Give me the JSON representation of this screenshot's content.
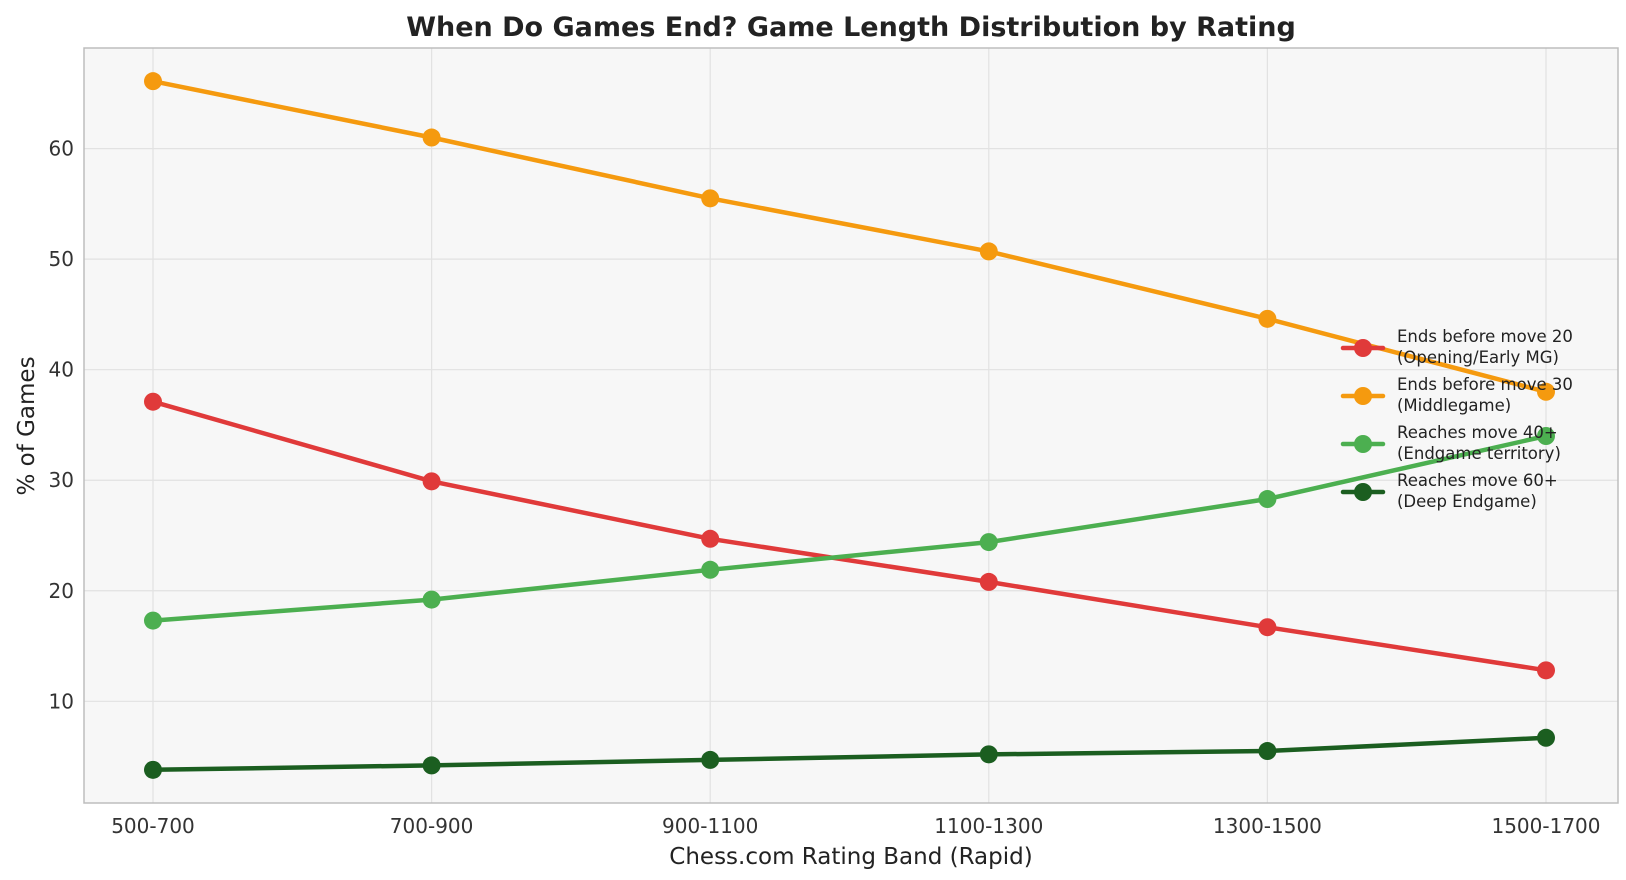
{
  "chart_data": {
    "type": "line",
    "title": "When Do Games End? Game Length Distribution by Rating",
    "xlabel": "Chess.com Rating Band (Rapid)",
    "ylabel": "% of Games",
    "categories": [
      "500-700",
      "700-900",
      "900-1100",
      "1100-1300",
      "1300-1500",
      "1500-1700"
    ],
    "ylim": [
      0.8,
      69.1
    ],
    "yticks": [
      "10",
      "20",
      "30",
      "40",
      "50",
      "60"
    ],
    "grid": true,
    "legend_position": "right",
    "series": [
      {
        "name": "Ends before move 20\n(Opening/Early MG)",
        "color": "#e03a3a",
        "values": [
          37.1,
          29.9,
          24.7,
          20.8,
          16.7,
          12.8
        ]
      },
      {
        "name": "Ends before move 30\n(Middlegame)",
        "color": "#f59a0f",
        "values": [
          66.1,
          61.0,
          55.5,
          50.7,
          44.6,
          38.0
        ]
      },
      {
        "name": "Reaches move 40+\n(Endgame territory)",
        "color": "#4caf50",
        "values": [
          17.3,
          19.2,
          21.9,
          24.4,
          28.3,
          34.0
        ]
      },
      {
        "name": "Reaches move 60+\n(Deep Endgame)",
        "color": "#1b5e20",
        "values": [
          3.8,
          4.2,
          4.7,
          5.2,
          5.5,
          6.7
        ]
      }
    ]
  },
  "colors": {
    "plot_bg": "#f7f7f7",
    "grid": "#e2e2e2",
    "axis": "#bdbdbd"
  }
}
